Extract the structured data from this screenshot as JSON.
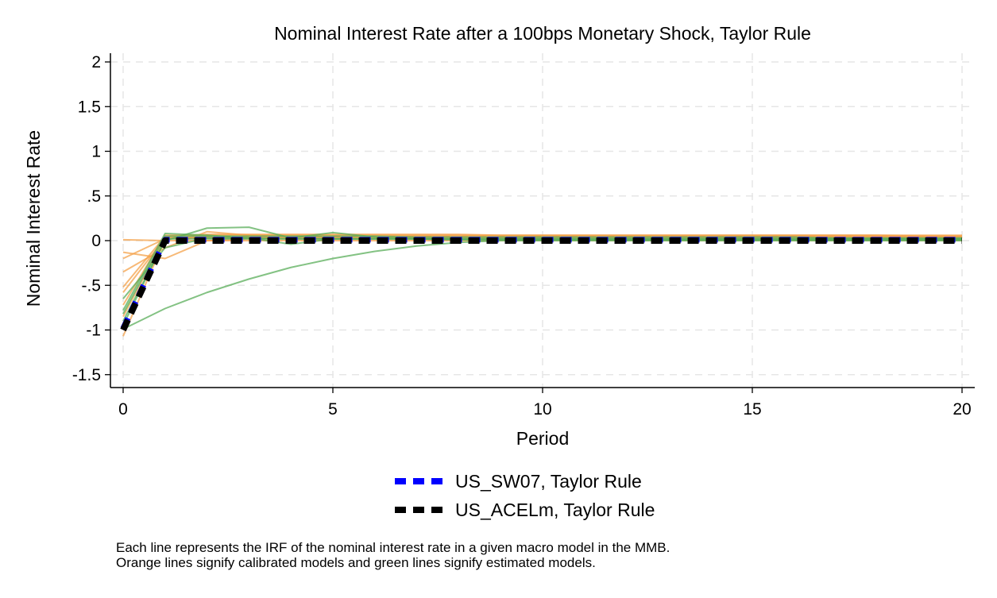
{
  "chart_data": {
    "type": "line",
    "title": "Nominal Interest Rate after a 100bps Monetary Shock, Taylor Rule",
    "xlabel": "Period",
    "ylabel": "Nominal Interest Rate",
    "xlim": [
      0,
      20
    ],
    "ylim": [
      -1.6,
      2.1
    ],
    "x_ticks": [
      0,
      5,
      10,
      15,
      20
    ],
    "x_tick_labels": [
      "0",
      "5",
      "10",
      "15",
      "20"
    ],
    "y_ticks": [
      2,
      1.5,
      1,
      0.5,
      0,
      -0.5,
      -1,
      -1.5
    ],
    "y_tick_labels": [
      "2",
      "1.5",
      "1",
      ".5",
      "0",
      "-.5",
      "-1",
      "-1.5"
    ],
    "grid": true,
    "legend_position": "bottom",
    "colors": {
      "calibrated": "#f4a24a",
      "estimated": "#5aad5a",
      "us_sw07": "#0000ff",
      "us_acelm": "#000000",
      "axis": "#000000",
      "grid": "#e6e6e6"
    },
    "x": [
      0,
      1,
      2,
      3,
      4,
      5,
      6,
      7,
      8,
      9,
      10,
      11,
      12,
      13,
      14,
      15,
      16,
      17,
      18,
      19,
      20
    ],
    "background_series": [
      {
        "group": "calibrated",
        "values": [
          0.01,
          0.0,
          0.0,
          0.0,
          0.0,
          0.0,
          0.0,
          0.0,
          0.0,
          0.0,
          0.0,
          0.0,
          0.0,
          0.0,
          0.0,
          0.0,
          0.0,
          0.0,
          0.0,
          0.0,
          0.0
        ]
      },
      {
        "group": "calibrated",
        "values": [
          -0.13,
          -0.2,
          0.0,
          0.02,
          0.02,
          0.02,
          0.02,
          0.02,
          0.02,
          0.02,
          0.02,
          0.02,
          0.02,
          0.02,
          0.02,
          0.02,
          0.02,
          0.02,
          0.02,
          0.02,
          0.02
        ]
      },
      {
        "group": "calibrated",
        "values": [
          -0.2,
          0.02,
          0.05,
          0.05,
          0.05,
          0.05,
          0.05,
          0.05,
          0.05,
          0.05,
          0.05,
          0.05,
          0.05,
          0.05,
          0.05,
          0.05,
          0.05,
          0.05,
          0.05,
          0.05,
          0.05
        ]
      },
      {
        "group": "calibrated",
        "values": [
          -0.35,
          -0.08,
          0.1,
          0.06,
          0.05,
          0.05,
          0.05,
          0.05,
          0.05,
          0.05,
          0.05,
          0.05,
          0.05,
          0.05,
          0.05,
          0.05,
          0.05,
          0.05,
          0.05,
          0.05,
          0.05
        ]
      },
      {
        "group": "calibrated",
        "values": [
          -0.52,
          0.05,
          0.07,
          0.07,
          0.07,
          0.07,
          0.07,
          0.07,
          0.07,
          0.06,
          0.06,
          0.06,
          0.06,
          0.06,
          0.06,
          0.06,
          0.06,
          0.06,
          0.06,
          0.05,
          0.05
        ]
      },
      {
        "group": "calibrated",
        "values": [
          -0.58,
          0.03,
          0.04,
          0.04,
          0.04,
          0.04,
          0.04,
          0.04,
          0.04,
          0.04,
          0.04,
          0.04,
          0.04,
          0.04,
          0.04,
          0.04,
          0.04,
          0.04,
          0.04,
          0.04,
          0.04
        ]
      },
      {
        "group": "calibrated",
        "values": [
          -0.72,
          0.06,
          0.06,
          0.06,
          0.06,
          0.06,
          0.06,
          0.06,
          0.06,
          0.06,
          0.06,
          0.06,
          0.06,
          0.06,
          0.06,
          0.06,
          0.06,
          0.06,
          0.06,
          0.06,
          0.06
        ]
      },
      {
        "group": "calibrated",
        "values": [
          -0.85,
          0.04,
          0.04,
          0.04,
          0.04,
          0.04,
          0.04,
          0.04,
          0.04,
          0.04,
          0.04,
          0.04,
          0.04,
          0.04,
          0.04,
          0.04,
          0.04,
          0.04,
          0.04,
          0.04,
          0.04
        ]
      },
      {
        "group": "calibrated",
        "values": [
          -1.07,
          0.02,
          0.03,
          0.03,
          0.03,
          0.03,
          0.03,
          0.03,
          0.03,
          0.03,
          0.03,
          0.03,
          0.03,
          0.03,
          0.03,
          0.03,
          0.03,
          0.03,
          0.03,
          0.03,
          0.03
        ]
      },
      {
        "group": "estimated",
        "values": [
          -0.99,
          -0.76,
          -0.58,
          -0.43,
          -0.3,
          -0.2,
          -0.12,
          -0.06,
          -0.02,
          0.0,
          0.0,
          0.0,
          0.0,
          0.0,
          0.0,
          0.0,
          0.0,
          0.0,
          0.0,
          0.0,
          0.0
        ]
      },
      {
        "group": "estimated",
        "values": [
          -0.9,
          0.0,
          0.14,
          0.15,
          0.03,
          0.09,
          0.04,
          0.02,
          0.01,
          0.01,
          0.01,
          0.01,
          0.01,
          0.01,
          0.01,
          0.01,
          0.01,
          0.01,
          0.01,
          0.01,
          0.01
        ]
      },
      {
        "group": "estimated",
        "values": [
          -0.78,
          0.08,
          0.06,
          0.03,
          -0.04,
          0.02,
          0.02,
          0.02,
          0.01,
          0.01,
          0.01,
          0.01,
          0.01,
          0.01,
          0.01,
          0.01,
          0.01,
          0.01,
          0.01,
          0.01,
          0.01
        ]
      },
      {
        "group": "estimated",
        "values": [
          -0.65,
          -0.08,
          0.03,
          0.03,
          0.02,
          0.02,
          0.02,
          0.02,
          0.02,
          0.02,
          0.02,
          0.02,
          0.02,
          0.02,
          0.02,
          0.02,
          0.02,
          0.02,
          0.02,
          0.02,
          0.02
        ]
      },
      {
        "group": "estimated",
        "values": [
          -0.82,
          0.05,
          0.05,
          0.05,
          0.05,
          0.05,
          0.05,
          0.04,
          0.04,
          0.04,
          0.04,
          0.04,
          0.04,
          0.04,
          0.04,
          0.04,
          0.04,
          0.03,
          0.03,
          0.03,
          0.03
        ]
      },
      {
        "group": "estimated",
        "values": [
          -0.95,
          0.02,
          0.02,
          0.02,
          0.02,
          0.02,
          0.02,
          0.02,
          0.02,
          0.02,
          0.02,
          0.02,
          0.02,
          0.02,
          0.02,
          0.02,
          0.02,
          0.02,
          0.02,
          0.02,
          0.02
        ]
      }
    ],
    "series": [
      {
        "name": "US_SW07, Taylor Rule",
        "color_key": "us_sw07",
        "values": [
          -0.98,
          0.01,
          0.01,
          0.01,
          0.01,
          0.01,
          0.01,
          0.01,
          0.01,
          0.01,
          0.01,
          0.01,
          0.01,
          0.01,
          0.01,
          0.01,
          0.01,
          0.01,
          0.01,
          0.01,
          0.01
        ]
      },
      {
        "name": "US_ACELm, Taylor Rule",
        "color_key": "us_acelm",
        "values": [
          -1.0,
          0.0,
          0.0,
          0.0,
          0.0,
          0.0,
          0.0,
          0.0,
          0.0,
          0.0,
          0.0,
          0.0,
          0.0,
          0.0,
          0.0,
          0.0,
          0.0,
          0.0,
          0.0,
          0.0,
          0.0
        ]
      }
    ],
    "notes": [
      "Each line represents the IRF of the nominal interest rate in a given macro model in the MMB.",
      "Orange lines signify calibrated models and green lines signify estimated models."
    ]
  }
}
